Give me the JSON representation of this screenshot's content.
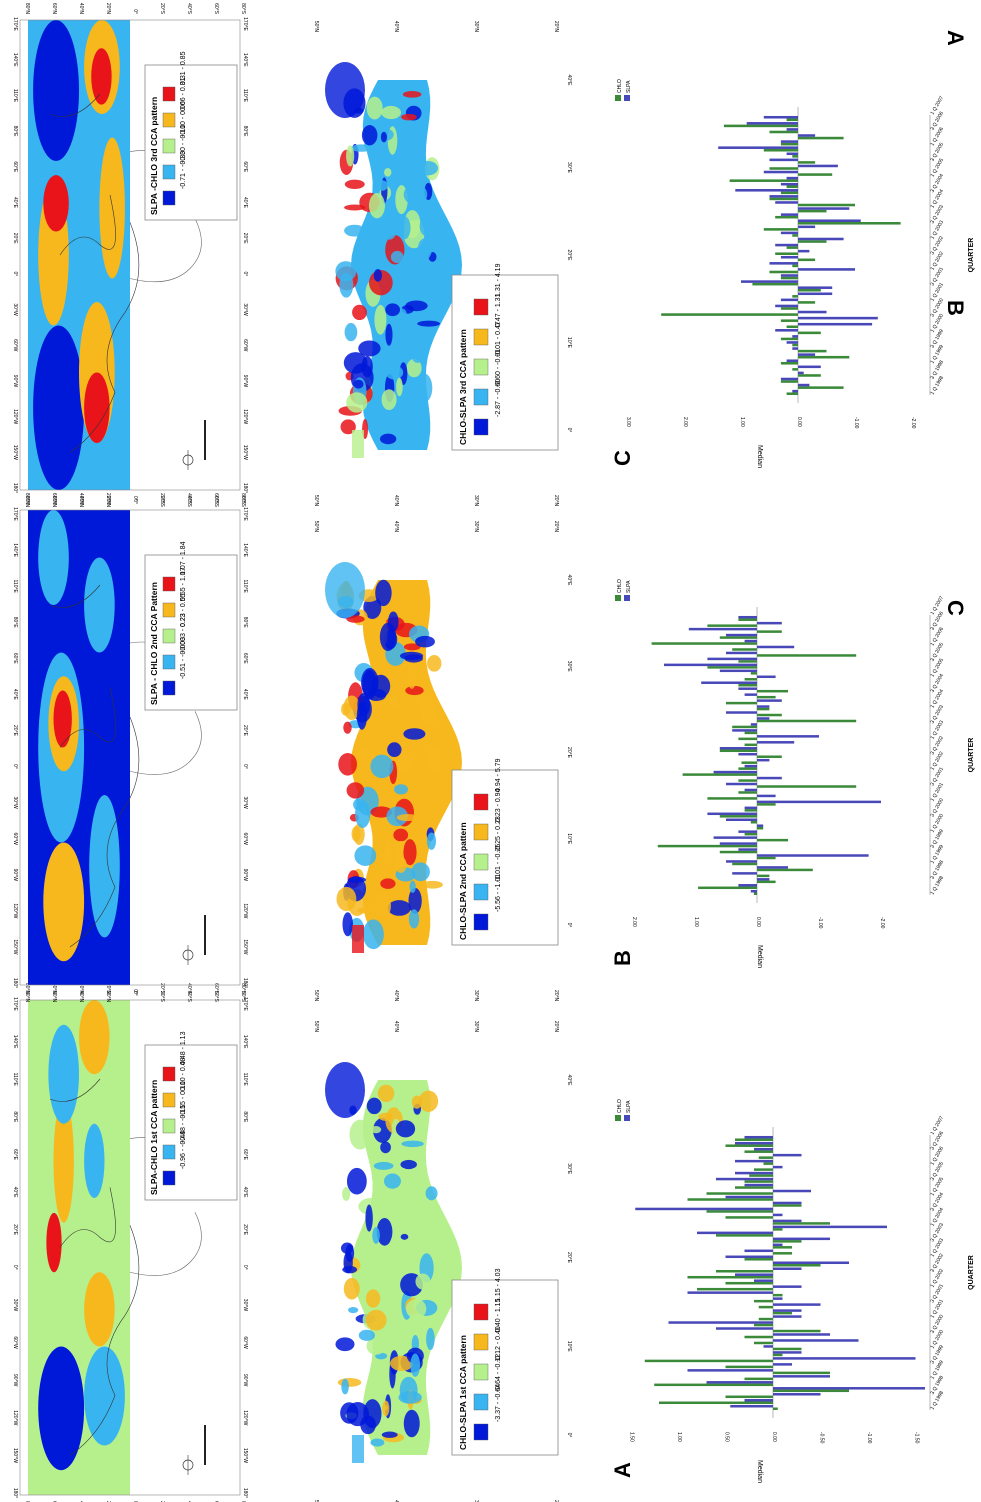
{
  "figure": {
    "panel_labels": {
      "A": "A",
      "B": "B",
      "C": "C"
    },
    "map_lat_labels": [
      "80°N",
      "60°N",
      "40°N",
      "20°N",
      "0°",
      "20°S",
      "40°S",
      "60°S",
      "80°S"
    ],
    "map_lon_labels": [
      "180°",
      "150°W",
      "120°W",
      "90°W",
      "60°W",
      "30°W",
      "0°",
      "20°E",
      "40°E",
      "60°E",
      "80°E",
      "110°E",
      "140°E",
      "170°E"
    ],
    "mediterranean_lat_labels": [
      "50°N",
      "40°N",
      "30°N",
      "20°N"
    ],
    "mediterranean_lon_labels": [
      "0°",
      "10°E",
      "20°E",
      "30°E",
      "40°E"
    ]
  },
  "legends": {
    "slpa": [
      {
        "title": "SLPA-CHLO 1st CCA pattern",
        "items": [
          "-0.96 - -0.48",
          "-0.48 - -0.15",
          "-0.15 - 0.10",
          "0.10 - 0.48",
          "0.48 - 1.13"
        ]
      },
      {
        "title": "SLPA - CHLO 2nd CCA Pattern",
        "items": [
          "-0.51 - -0.003",
          "-0.003 - 0.23",
          "0.23 - 0.55",
          "0.55 - 1.07",
          "1.07 - 1.84"
        ]
      },
      {
        "title": "SLPA -CHLO 3rd CCA pattern",
        "items": [
          "-0.71 - -0.30",
          "-0.30 - -0.10",
          "-0.10 - 0.06",
          "0.06 - 0.31",
          "0.31 - 0.85"
        ]
      }
    ],
    "chlo": [
      {
        "title": "CHLO-SLPA 1st CCA pattern",
        "items": [
          "-3.37 - -0.64",
          "-0.64 - -0.12",
          "-0.12 - 0.40",
          "0.40 - 1.15",
          "1.15 - 4.03"
        ]
      },
      {
        "title": "CHLO-SLPA 2nd CCA pattern",
        "items": [
          "-5.56 - -1.01",
          "-1.01 - -0.25",
          "-0.25 - 0.23",
          "0.23 - 0.94",
          "0.94 - 5.79"
        ]
      },
      {
        "title": "CHLO-SLPA 3rd CCA pattern",
        "items": [
          "-2.87 - -0.60",
          "-0.60 - -0.01",
          "-0.01 - 0.47",
          "0.47 - 1.31",
          "1.31 - 4.19"
        ]
      }
    ],
    "colors": [
      "#0018d8",
      "#38b4f0",
      "#b6f08c",
      "#f7b81e",
      "#e8141a"
    ]
  },
  "charts": {
    "ylabel": "Median",
    "xlabel": "QUARTER",
    "legend": [
      "CHLO",
      "SLPA"
    ],
    "chlo_color": "#3a8a3a",
    "slpa_color": "#4848b8",
    "quarters": [
      "1 Q 1998",
      "3 Q 1998",
      "1 Q 1999",
      "3 Q 1999",
      "1 Q 2000",
      "3 Q 2000",
      "1 Q 2001",
      "3 Q 2001",
      "1 Q 2002",
      "3 Q 2002",
      "1 Q 2003",
      "3 Q 2003",
      "1 Q 2004",
      "3 Q 2004",
      "1 Q 2005",
      "3 Q 2005",
      "1 Q 2006",
      "3 Q 2006",
      "1 Q 2007"
    ]
  },
  "chart_data": [
    {
      "type": "bar",
      "panel": "A",
      "orientation": "rotated",
      "ylabel": "Median",
      "xlabel": "QUARTER",
      "ylim": [
        -1.75,
        1.5
      ],
      "yticks": [
        "1.50",
        "1.00",
        "0.50",
        "0.00",
        "-0.50",
        "-1.00",
        "-1.50"
      ],
      "series": [
        {
          "name": "CHLO",
          "values": [
            -0.05,
            1.2,
            0.5,
            -0.8,
            1.25,
            0.3,
            -0.6,
            0.5,
            1.35,
            -0.1,
            -0.3,
            0.2,
            0.3,
            -0.5,
            0.2,
            0.15,
            -0.2,
            0.15,
            0.2,
            -0.1,
            0.8,
            0.5,
            0.9,
            0.6,
            -0.5,
            0.3,
            -0.2,
            -0.2,
            -0.3,
            0.6,
            -0.1,
            -0.6,
            0.5,
            0.7,
            -0.3,
            0.9,
            0.7,
            0.4,
            0.3,
            0.25,
            0.2,
            0.1,
            0.15,
            0.3,
            0.5,
            0.4
          ]
        },
        {
          "name": "SLPA",
          "values": [
            0.45,
            0.3,
            -0.5,
            -1.6,
            0.7,
            -0.6,
            0.9,
            -0.2,
            -1.5,
            -0.3,
            0.1,
            -0.9,
            -0.6,
            0.6,
            1.1,
            -0.3,
            -0.3,
            -0.5,
            -0.1,
            0.9,
            -0.3,
            0.2,
            0.4,
            -0.3,
            -0.8,
            0.5,
            0.3,
            -0.1,
            -0.6,
            0.8,
            -1.2,
            -0.3,
            -0.1,
            1.45,
            -0.3,
            0.5,
            -0.4,
            0.3,
            0.6,
            0.4,
            -0.1,
            0.4,
            -0.3,
            0.2,
            0.4,
            0.3
          ]
        }
      ]
    },
    {
      "type": "bar",
      "panel": "B",
      "orientation": "rotated",
      "ylabel": "Median",
      "xlabel": "QUARTER",
      "ylim": [
        -2.5,
        2.0
      ],
      "yticks": [
        "2.00",
        "1.00",
        "0.00",
        "-1.00",
        "-2.00"
      ],
      "series": [
        {
          "name": "CHLO",
          "values": [
            0.05,
            0.95,
            -0.3,
            -0.2,
            -0.9,
            0.4,
            -0.3,
            0.6,
            1.6,
            -0.5,
            0.2,
            -0.1,
            0.1,
            0.6,
            0.2,
            -0.3,
            0.8,
            0.3,
            -1.6,
            0.3,
            1.2,
            0.3,
            0.25,
            -0.4,
            0.6,
            0.2,
            0.3,
            0.2,
            0.4,
            -1.6,
            -0.4,
            -0.2,
            0.5,
            -0.3,
            -0.5,
            0.3,
            0.2,
            0.1,
            0.8,
            0.3,
            -1.6,
            0.4,
            1.7,
            0.6,
            -0.4,
            0.8,
            0.3
          ]
        },
        {
          "name": "SLPA",
          "values": [
            0.1,
            0.3,
            -0.2,
            0.4,
            -0.5,
            0.5,
            -1.8,
            0.3,
            0.6,
            0.7,
            0.3,
            -0.1,
            0.5,
            0.8,
            0.2,
            -2.0,
            -0.3,
            0.2,
            0.5,
            -0.4,
            0.7,
            0.2,
            -0.2,
            0.3,
            0.6,
            -0.6,
            -1.0,
            0.4,
            0.1,
            -0.2,
            0.5,
            -0.2,
            -0.4,
            0.2,
            0.3,
            0.9,
            -0.3,
            0.6,
            1.5,
            0.8,
            0.5,
            -0.6,
            0.2,
            0.5,
            1.1,
            -0.4,
            0.3
          ]
        }
      ]
    },
    {
      "type": "bar",
      "panel": "C",
      "orientation": "rotated",
      "ylabel": "Median",
      "xlabel": "QUARTER",
      "ylim": [
        -2.25,
        3.0
      ],
      "yticks": [
        "3.00",
        "2.00",
        "1.00",
        "0.00",
        "-1.00",
        "-2.00"
      ],
      "series": [
        {
          "name": "CHLO",
          "values": [
            0.2,
            -0.8,
            0.3,
            -0.4,
            0.1,
            0.3,
            -0.9,
            -0.5,
            0.1,
            0.3,
            -0.4,
            0.2,
            0.3,
            2.4,
            0.3,
            -0.3,
            0.1,
            -0.4,
            0.8,
            0.3,
            0.5,
            0.1,
            -0.3,
            0.4,
            0.2,
            -0.5,
            0.1,
            0.6,
            -1.8,
            0.4,
            -0.5,
            -1.0,
            0.5,
            0.3,
            0.2,
            1.2,
            -0.6,
            0.5,
            -0.3,
            0.1,
            0.6,
            0.3,
            -0.8,
            0.5,
            1.3,
            0.2
          ]
        },
        {
          "name": "SLPA",
          "values": [
            0.1,
            -0.2,
            0.3,
            -0.1,
            -0.4,
            0.2,
            -0.3,
            0.1,
            0.2,
            0.1,
            0.4,
            -1.3,
            -1.4,
            -0.5,
            0.4,
            0.3,
            -0.6,
            -0.6,
            1.0,
            0.3,
            -1.0,
            0.5,
            0.3,
            -0.2,
            0.4,
            -0.8,
            0.3,
            -0.3,
            -1.1,
            0.3,
            -0.9,
            0.4,
            0.5,
            1.1,
            0.3,
            0.2,
            0.6,
            -0.7,
            0.5,
            0.2,
            1.4,
            0.3,
            -0.3,
            0.2,
            0.9,
            0.6
          ]
        }
      ]
    }
  ]
}
